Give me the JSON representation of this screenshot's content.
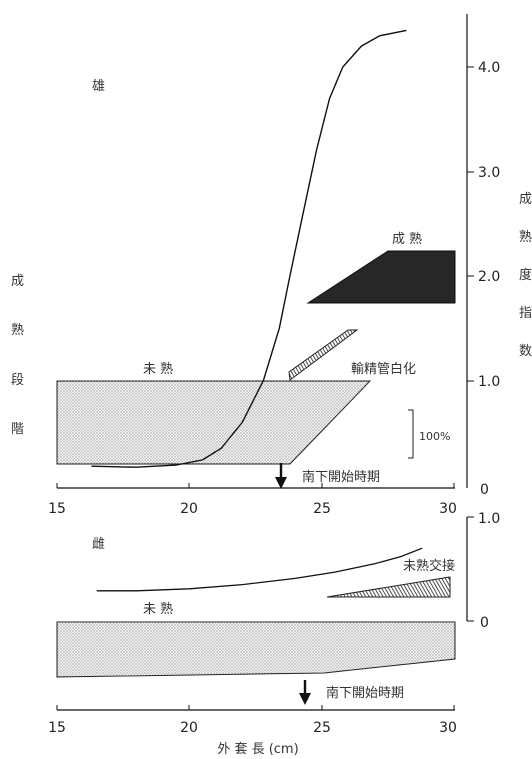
{
  "chart_data": [
    {
      "type": "area",
      "panel": "male",
      "title": "雄",
      "xlabel": "外 套 長 (cm)",
      "x_ticks": [
        15,
        20,
        25,
        30
      ],
      "xlim": [
        15,
        30
      ],
      "ylabel_left": [
        "成",
        "熟",
        "段",
        "階"
      ],
      "ylabel_right": [
        "成",
        "熟",
        "度",
        "指",
        "数"
      ],
      "y_right_ticks": [
        "4.0",
        "3.0",
        "2.0",
        "1.0",
        "0"
      ],
      "y_right_lim": [
        0,
        4.4
      ],
      "scale_bar_label": "100%",
      "series": [
        {
          "name": "成熟度指数",
          "kind": "line",
          "points": [
            [
              16.3,
              0.18
            ],
            [
              18,
              0.17
            ],
            [
              19.5,
              0.19
            ],
            [
              20.5,
              0.24
            ],
            [
              21.2,
              0.35
            ],
            [
              22,
              0.6
            ],
            [
              22.8,
              1.0
            ],
            [
              23.4,
              1.5
            ],
            [
              23.8,
              2.0
            ],
            [
              24.3,
              2.6
            ],
            [
              24.8,
              3.2
            ],
            [
              25.3,
              3.7
            ],
            [
              25.8,
              4.0
            ],
            [
              26.5,
              4.2
            ],
            [
              27.2,
              4.3
            ],
            [
              28.2,
              4.35
            ]
          ]
        },
        {
          "name": "未 熟",
          "kind": "band",
          "top": [
            [
              15,
              100
            ],
            [
              27,
              100
            ]
          ],
          "bottom": [
            [
              15,
              0
            ],
            [
              23.8,
              0
            ],
            [
              27,
              100
            ]
          ]
        },
        {
          "name": "輸精管白化",
          "kind": "band",
          "polygon": [
            [
              24.1,
              0
            ],
            [
              27.6,
              100
            ],
            [
              26.9,
              100
            ],
            [
              24.0,
              0
            ]
          ]
        },
        {
          "name": "成 熟",
          "kind": "band",
          "polygon": [
            [
              24.5,
              0
            ],
            [
              30,
              0
            ],
            [
              30,
              100
            ],
            [
              27.3,
              100
            ]
          ]
        }
      ],
      "annotation": {
        "arrow_x": 23.5,
        "label": "南下開始時期"
      }
    },
    {
      "type": "area",
      "panel": "female",
      "title": "雌",
      "x_ticks": [
        15,
        20,
        25,
        30
      ],
      "xlim": [
        15,
        30
      ],
      "y_right_ticks": [
        "1.0",
        "0"
      ],
      "y_right_lim": [
        0,
        1.0
      ],
      "series": [
        {
          "name": "成熟度指数",
          "kind": "line",
          "points": [
            [
              16.5,
              0.29
            ],
            [
              18,
              0.29
            ],
            [
              20,
              0.31
            ],
            [
              22,
              0.35
            ],
            [
              24,
              0.41
            ],
            [
              25.5,
              0.47
            ],
            [
              27,
              0.55
            ],
            [
              28,
              0.62
            ],
            [
              28.8,
              0.7
            ]
          ]
        },
        {
          "name": "未 熟",
          "kind": "band",
          "polygon": [
            [
              15,
              0
            ],
            [
              25,
              0
            ],
            [
              30,
              0.45
            ],
            [
              30,
              1
            ],
            [
              15,
              1
            ]
          ]
        },
        {
          "name": "未熟交接",
          "kind": "band",
          "polygon": [
            [
              25.8,
              0.28
            ],
            [
              30,
              0.28
            ],
            [
              30,
              0.62
            ]
          ]
        }
      ],
      "annotation": {
        "arrow_x": 24.5,
        "label": "南下開始時期"
      }
    }
  ]
}
